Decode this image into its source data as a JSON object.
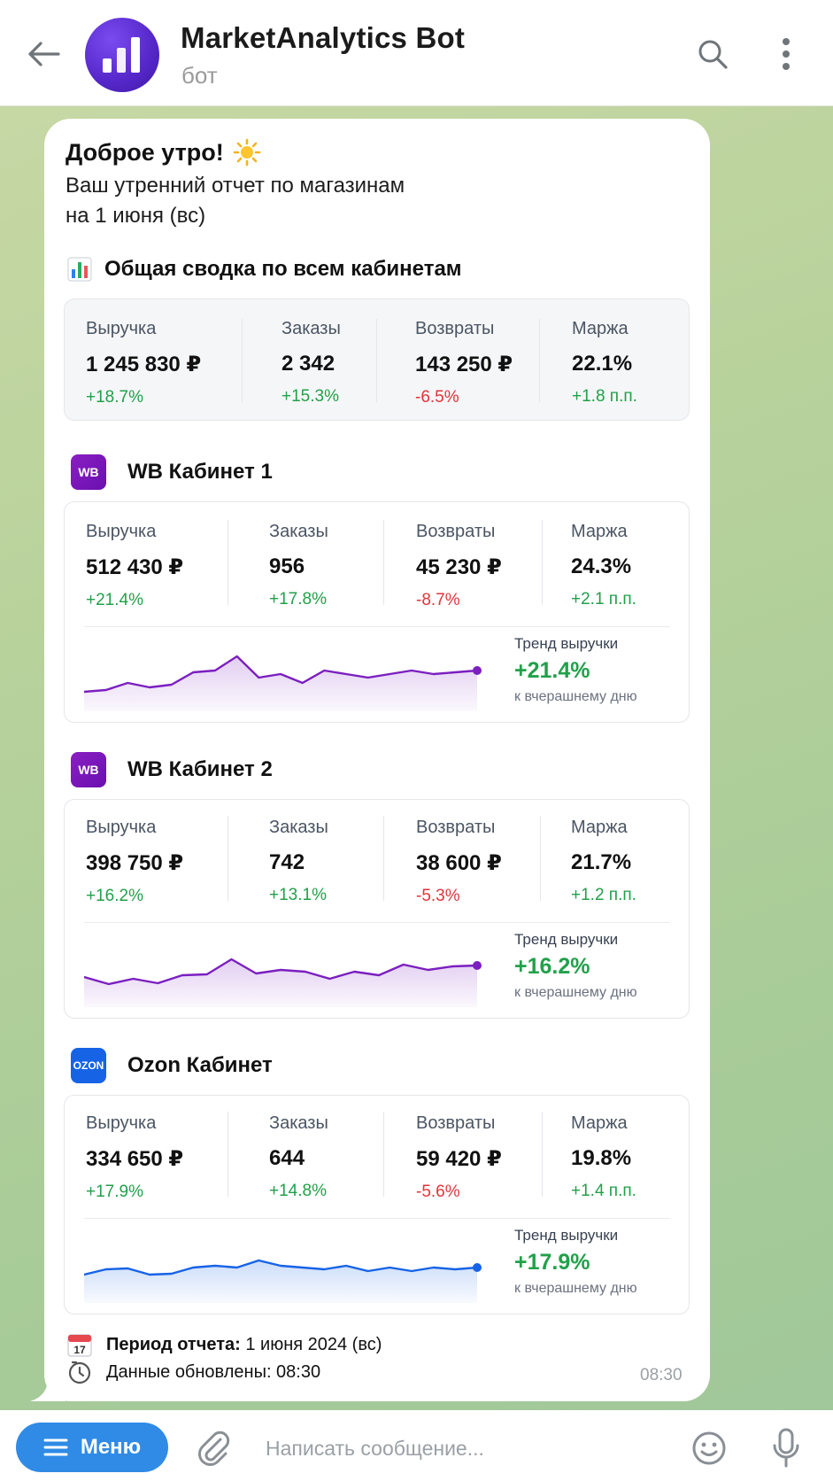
{
  "header": {
    "title": "MarketAnalytics Bot",
    "subtitle": "бот"
  },
  "message": {
    "greeting": "Доброе утро!",
    "intro_line1": "Ваш утренний отчет по магазинам",
    "intro_line2": "на 1 июня (вс)",
    "summary_title": "Общая сводка по всем кабинетам",
    "summary": [
      {
        "label": "Выручка",
        "value": "1 245 830 ₽",
        "delta": "+18.7%",
        "status": "positive"
      },
      {
        "label": "Заказы",
        "value": "2 342",
        "delta": "+15.3%",
        "status": "positive"
      },
      {
        "label": "Возвраты",
        "value": "143 250 ₽",
        "delta": "-6.5%",
        "status": "negative"
      },
      {
        "label": "Маржа",
        "value": "22.1%",
        "delta": "+1.8 п.п.",
        "status": "positive"
      }
    ],
    "shops": [
      {
        "name": "WB Кабинет 1",
        "logo": "WB",
        "color": "#7b1fc0",
        "metrics": [
          {
            "label": "Выручка",
            "value": "512 430 ₽",
            "delta": "+21.4%",
            "status": "positive"
          },
          {
            "label": "Заказы",
            "value": "956",
            "delta": "+17.8%",
            "status": "positive"
          },
          {
            "label": "Возвраты",
            "value": "45 230 ₽",
            "delta": "-8.7%",
            "status": "negative"
          },
          {
            "label": "Маржа",
            "value": "24.3%",
            "delta": "+2.1 п.п.",
            "status": "positive"
          }
        ],
        "trend": {
          "label": "Тренд выручки",
          "value": "+21.4%",
          "sub": "к вчерашнему дню"
        },
        "sparkline": [
          20,
          22,
          30,
          25,
          28,
          42,
          44,
          60,
          36,
          40,
          30,
          44,
          40,
          36,
          40,
          44,
          40,
          42,
          44
        ]
      },
      {
        "name": "WB Кабинет 2",
        "logo": "WB",
        "color": "#7b1fc0",
        "metrics": [
          {
            "label": "Выручка",
            "value": "398 750 ₽",
            "delta": "+16.2%",
            "status": "positive"
          },
          {
            "label": "Заказы",
            "value": "742",
            "delta": "+13.1%",
            "status": "positive"
          },
          {
            "label": "Возвраты",
            "value": "38 600 ₽",
            "delta": "-5.3%",
            "status": "negative"
          },
          {
            "label": "Маржа",
            "value": "21.7%",
            "delta": "+1.2 п.п.",
            "status": "positive"
          }
        ],
        "trend": {
          "label": "Тренд выручки",
          "value": "+16.2%",
          "sub": "к вчерашнему дню"
        },
        "sparkline": [
          32,
          24,
          30,
          25,
          34,
          35,
          52,
          36,
          40,
          38,
          30,
          38,
          34,
          46,
          40,
          44,
          45
        ]
      },
      {
        "name": "Ozon Кабинет",
        "logo": "OZON",
        "color": "#1663e6",
        "metrics": [
          {
            "label": "Выручка",
            "value": "334 650 ₽",
            "delta": "+17.9%",
            "status": "positive"
          },
          {
            "label": "Заказы",
            "value": "644",
            "delta": "+14.8%",
            "status": "positive"
          },
          {
            "label": "Возвраты",
            "value": "59 420 ₽",
            "delta": "-5.6%",
            "status": "negative"
          },
          {
            "label": "Маржа",
            "value": "19.8%",
            "delta": "+1.4 п.п.",
            "status": "positive"
          }
        ],
        "trend": {
          "label": "Тренд выручки",
          "value": "+17.9%",
          "sub": "к вчерашнему дню"
        },
        "sparkline": [
          30,
          36,
          37,
          30,
          31,
          38,
          40,
          38,
          46,
          40,
          38,
          36,
          40,
          34,
          38,
          34,
          38,
          36,
          38
        ]
      }
    ],
    "period_label": "Период отчета:",
    "period_value": "1 июня 2024 (вс)",
    "updated": "Данные обновлены: 08:30",
    "time": "08:30"
  },
  "bottom": {
    "menu_label": "Меню",
    "input_placeholder": "Написать сообщение..."
  },
  "colors": {
    "positive": "#22a04a",
    "negative": "#e0353b",
    "wb": "#7b1fc0",
    "ozon": "#1663e6",
    "menu": "#2f8be6"
  }
}
